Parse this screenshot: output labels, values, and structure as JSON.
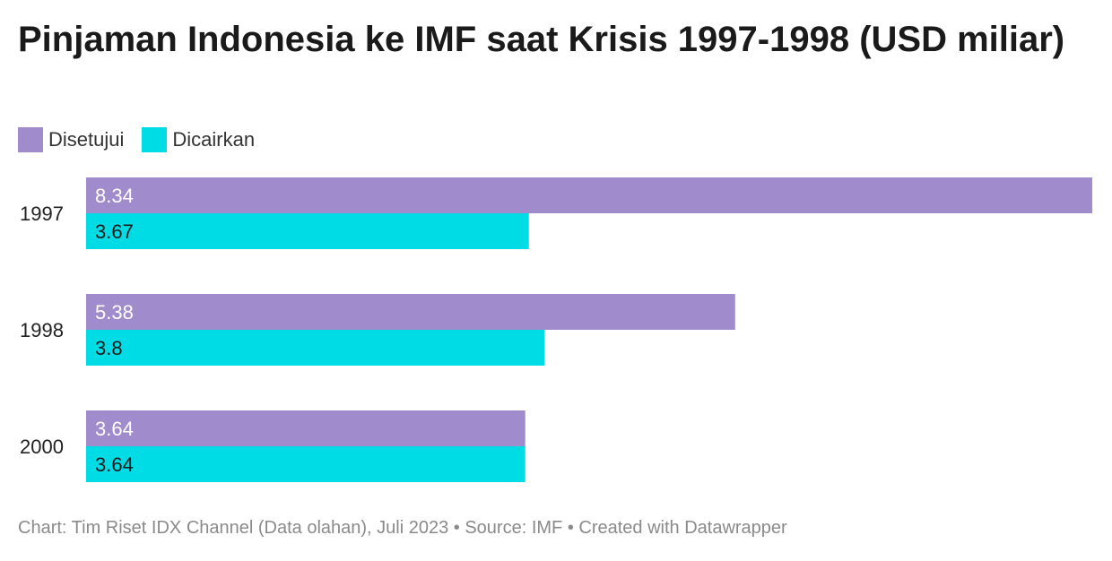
{
  "chart_data": {
    "type": "bar",
    "orientation": "horizontal",
    "title": "Pinjaman Indonesia ke IMF saat Krisis 1997-1998 (USD miliar)",
    "categories": [
      "1997",
      "1998",
      "2000"
    ],
    "series": [
      {
        "name": "Disetujui",
        "values": [
          8.34,
          5.38,
          3.64
        ],
        "color": "#a08bcc",
        "label_color": "#ffffff"
      },
      {
        "name": "Dicairkan",
        "values": [
          3.67,
          3.8,
          3.64
        ],
        "color": "#00dce5",
        "label_color": "#1a1a1a"
      }
    ],
    "xlim": [
      0,
      8.34
    ],
    "grid": false,
    "legend_position": "top-left",
    "data_labels": true
  },
  "footer": {
    "text": "Chart: Tim Riset IDX Channel (Data olahan), Juli 2023 • Source: IMF • Created with Datawrapper"
  }
}
